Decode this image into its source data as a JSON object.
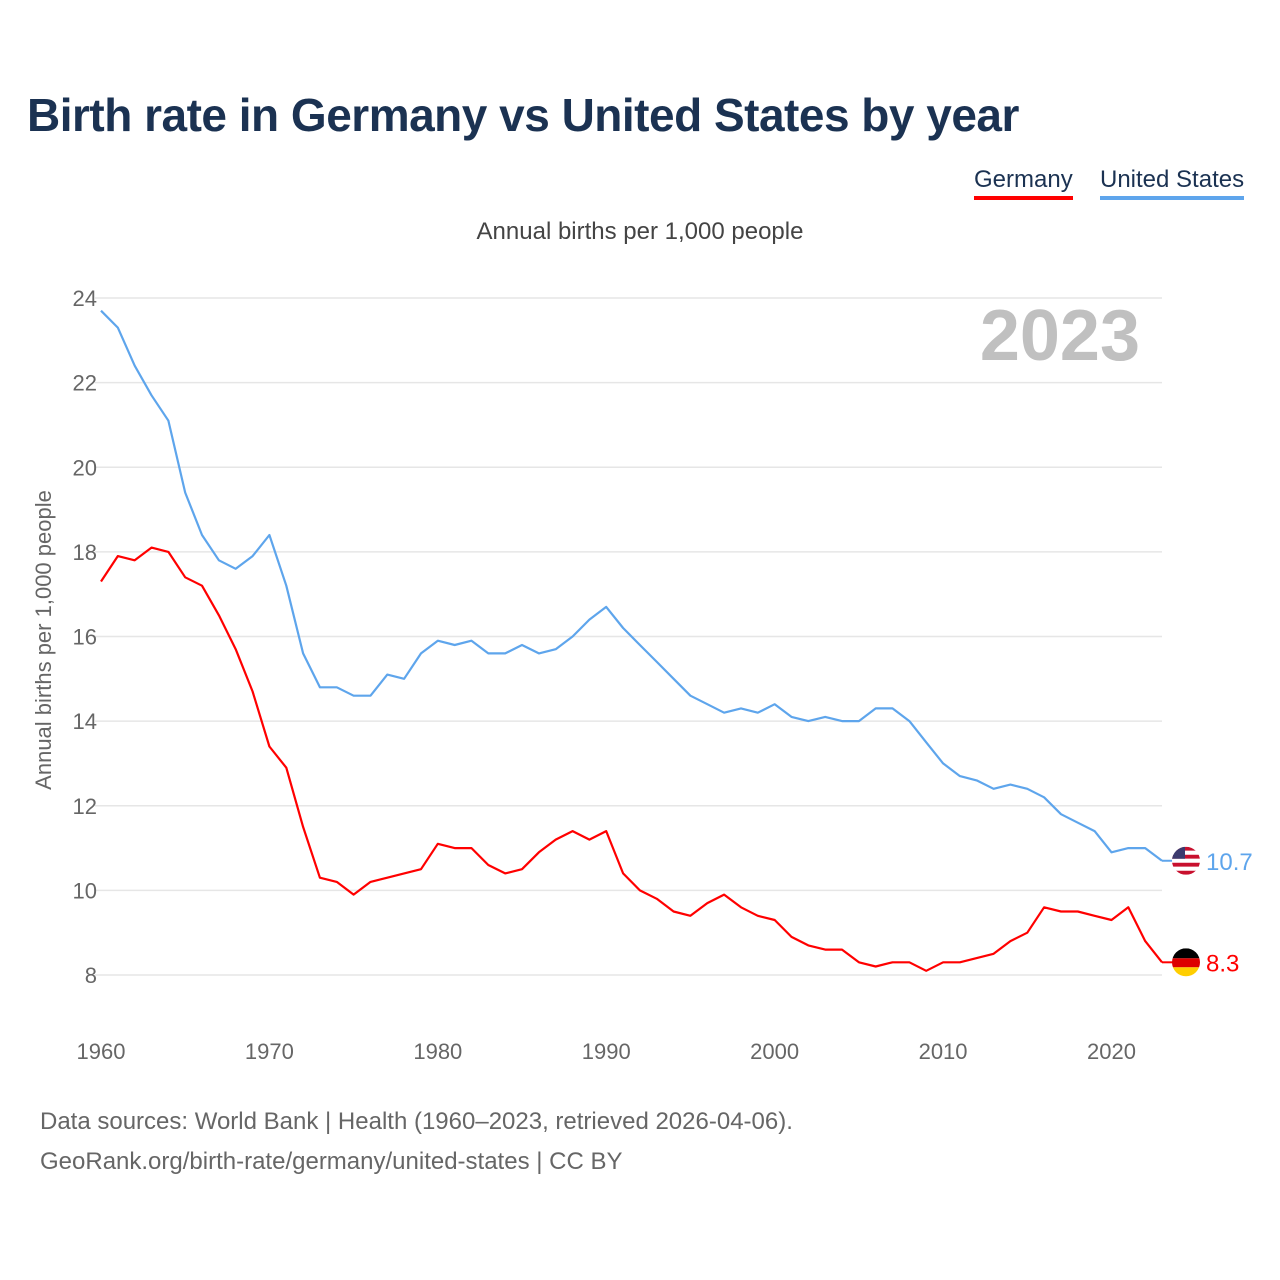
{
  "title": "Birth rate in Germany vs United States by year",
  "subtitle": "Annual births per 1,000 people",
  "year_badge": "2023",
  "footer": {
    "line1": "Data sources: World Bank | Health (1960–2023, retrieved 2026-04-06).",
    "line2": "GeoRank.org/birth-rate/germany/united-states | CC BY"
  },
  "chart_data": {
    "type": "line",
    "title": "Birth rate in Germany vs United States by year",
    "xlabel": "",
    "ylabel": "Annual births per 1,000 people",
    "xlim": [
      1960,
      2023
    ],
    "ylim": [
      7,
      24
    ],
    "grid": true,
    "legend_placement": "top-right",
    "x_ticks": [
      "1960",
      "1970",
      "1980",
      "1990",
      "2000",
      "2010",
      "2020"
    ],
    "y_ticks": [
      "8",
      "10",
      "12",
      "14",
      "16",
      "18",
      "20",
      "22",
      "24"
    ],
    "x": [
      1960,
      1961,
      1962,
      1963,
      1964,
      1965,
      1966,
      1967,
      1968,
      1969,
      1970,
      1971,
      1972,
      1973,
      1974,
      1975,
      1976,
      1977,
      1978,
      1979,
      1980,
      1981,
      1982,
      1983,
      1984,
      1985,
      1986,
      1987,
      1988,
      1989,
      1990,
      1991,
      1992,
      1993,
      1994,
      1995,
      1996,
      1997,
      1998,
      1999,
      2000,
      2001,
      2002,
      2003,
      2004,
      2005,
      2006,
      2007,
      2008,
      2009,
      2010,
      2011,
      2012,
      2013,
      2014,
      2015,
      2016,
      2017,
      2018,
      2019,
      2020,
      2021,
      2022,
      2023
    ],
    "series": [
      {
        "name": "Germany",
        "color": "#ff0000",
        "end_label": "8.3",
        "flag": "germany-flag",
        "values": [
          17.3,
          17.9,
          17.8,
          18.1,
          18.0,
          17.4,
          17.2,
          16.5,
          15.7,
          14.7,
          13.4,
          12.9,
          11.5,
          10.3,
          10.2,
          9.9,
          10.2,
          10.3,
          10.4,
          10.5,
          11.1,
          11.0,
          11.0,
          10.6,
          10.4,
          10.5,
          10.9,
          11.2,
          11.4,
          11.2,
          11.4,
          10.4,
          10.0,
          9.8,
          9.5,
          9.4,
          9.7,
          9.9,
          9.6,
          9.4,
          9.3,
          8.9,
          8.7,
          8.6,
          8.6,
          8.3,
          8.2,
          8.3,
          8.3,
          8.1,
          8.3,
          8.3,
          8.4,
          8.5,
          8.8,
          9.0,
          9.6,
          9.5,
          9.5,
          9.4,
          9.3,
          9.6,
          8.8,
          8.3
        ]
      },
      {
        "name": "United States",
        "color": "#5ea5ec",
        "end_label": "10.7",
        "flag": "us-flag",
        "values": [
          23.7,
          23.3,
          22.4,
          21.7,
          21.1,
          19.4,
          18.4,
          17.8,
          17.6,
          17.9,
          18.4,
          17.2,
          15.6,
          14.8,
          14.8,
          14.6,
          14.6,
          15.1,
          15.0,
          15.6,
          15.9,
          15.8,
          15.9,
          15.6,
          15.6,
          15.8,
          15.6,
          15.7,
          16.0,
          16.4,
          16.7,
          16.2,
          15.8,
          15.4,
          15.0,
          14.6,
          14.4,
          14.2,
          14.3,
          14.2,
          14.4,
          14.1,
          14.0,
          14.1,
          14.0,
          14.0,
          14.3,
          14.3,
          14.0,
          13.5,
          13.0,
          12.7,
          12.6,
          12.4,
          12.5,
          12.4,
          12.2,
          11.8,
          11.6,
          11.4,
          10.9,
          11.0,
          11.0,
          10.7
        ]
      }
    ]
  }
}
